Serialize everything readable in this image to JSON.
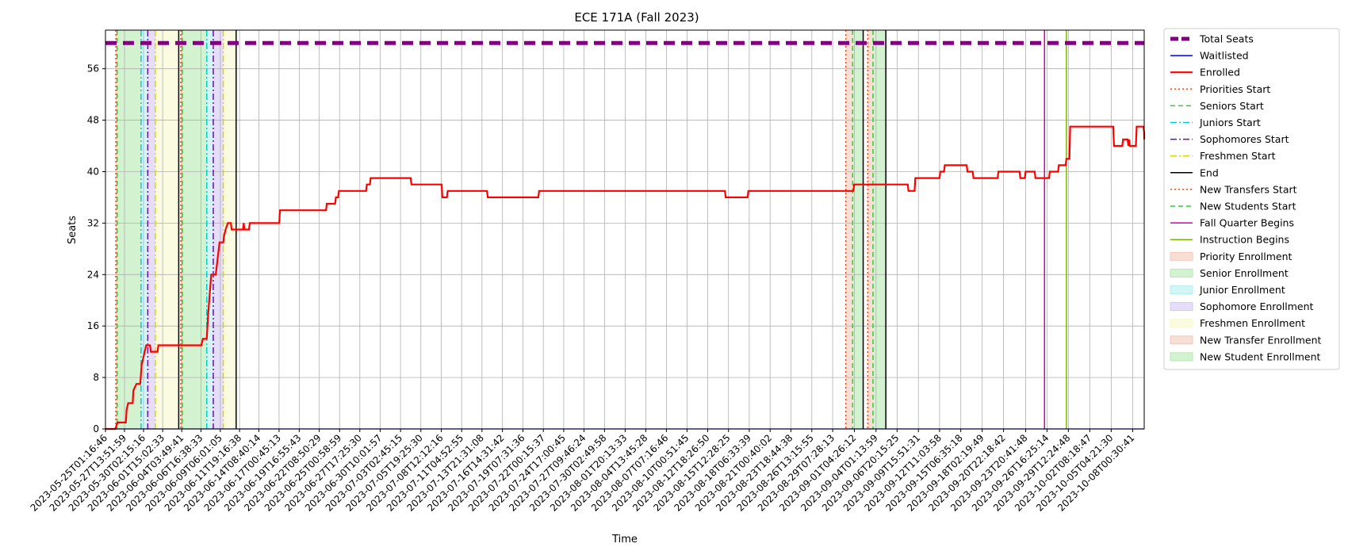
{
  "chart_data": {
    "type": "line",
    "title": "ECE 171A (Fall 2023)",
    "xlabel": "Time",
    "ylabel": "Seats",
    "ylim": [
      0,
      62
    ],
    "xlim_days": [
      0,
      137.5
    ],
    "grid": true,
    "legend_position": "outside-right",
    "yticks": [
      0,
      8,
      16,
      24,
      32,
      40,
      48,
      56
    ],
    "x_tick_labels": [
      "2023-05-25T01:16:46",
      "2023-05-27T13:51:59",
      "2023-05-30T02:15:16",
      "2023-06-01T15:02:33",
      "2023-06-04T03:49:41",
      "2023-06-06T16:38:33",
      "2023-06-09T06:01:05",
      "2023-06-11T19:16:38",
      "2023-06-14T08:40:14",
      "2023-06-17T00:45:13",
      "2023-06-19T16:55:43",
      "2023-06-22T08:50:29",
      "2023-06-25T00:58:59",
      "2023-06-27T17:25:30",
      "2023-06-30T10:01:57",
      "2023-07-03T02:45:15",
      "2023-07-05T19:25:30",
      "2023-07-08T12:12:16",
      "2023-07-11T04:52:55",
      "2023-07-13T21:31:08",
      "2023-07-16T14:31:42",
      "2023-07-19T07:31:36",
      "2023-07-22T00:15:37",
      "2023-07-24T17:00:45",
      "2023-07-27T09:46:24",
      "2023-07-30T02:49:58",
      "2023-08-01T20:13:33",
      "2023-08-04T13:45:28",
      "2023-08-07T07:16:46",
      "2023-08-10T00:51:45",
      "2023-08-12T18:26:50",
      "2023-08-15T12:28:25",
      "2023-08-18T06:33:39",
      "2023-08-21T00:40:02",
      "2023-08-23T18:44:38",
      "2023-08-26T13:15:55",
      "2023-08-29T07:28:13",
      "2023-09-01T04:26:12",
      "2023-09-04T01:13:59",
      "2023-09-06T20:15:25",
      "2023-09-09T15:51:31",
      "2023-09-12T11:03:58",
      "2023-09-15T06:35:18",
      "2023-09-18T02:19:49",
      "2023-09-20T22:18:42",
      "2023-09-23T20:41:48",
      "2023-09-26T16:25:14",
      "2023-09-29T12:24:48",
      "2023-10-02T08:18:47",
      "2023-10-05T04:21:30",
      "2023-10-08T00:30:41"
    ],
    "x_tick_days": [
      0,
      2.52,
      5.04,
      7.57,
      10.1,
      12.64,
      15.2,
      17.75,
      20.3,
      22.98,
      25.65,
      28.3,
      30.99,
      33.67,
      36.36,
      39.06,
      41.75,
      44.45,
      47.15,
      49.84,
      52.55,
      55.26,
      57.96,
      60.66,
      63.35,
      66.06,
      68.79,
      71.52,
      74.25,
      76.98,
      79.72,
      82.47,
      85.22,
      87.98,
      90.73,
      93.5,
      96.26,
      99.13,
      102.0,
      104.79,
      107.61,
      110.41,
      113.22,
      116.05,
      118.88,
      121.81,
      124.63,
      127.46,
      130.29,
      133.13,
      135.97
    ],
    "series": [
      {
        "name": "Total Seats",
        "color": "#800080",
        "style": "dashed-thick",
        "points": [
          [
            0,
            60
          ],
          [
            137.5,
            60
          ]
        ]
      },
      {
        "name": "Waitlisted",
        "color": "#0000ff",
        "style": "solid",
        "points": [
          [
            0,
            0
          ],
          [
            137.5,
            0
          ]
        ]
      },
      {
        "name": "Enrolled",
        "color": "#ff0000",
        "style": "step",
        "points": [
          [
            0,
            0
          ],
          [
            1.3,
            0
          ],
          [
            1.6,
            1
          ],
          [
            2.7,
            1
          ],
          [
            2.8,
            3
          ],
          [
            3.0,
            4
          ],
          [
            3.6,
            4
          ],
          [
            3.7,
            6
          ],
          [
            4.1,
            7
          ],
          [
            4.6,
            7
          ],
          [
            4.8,
            10
          ],
          [
            5.2,
            12
          ],
          [
            5.4,
            13
          ],
          [
            5.9,
            13
          ],
          [
            6.0,
            12
          ],
          [
            6.9,
            12
          ],
          [
            7.0,
            13
          ],
          [
            10.5,
            13
          ],
          [
            12.7,
            13
          ],
          [
            12.9,
            14
          ],
          [
            13.4,
            14
          ],
          [
            13.6,
            18
          ],
          [
            13.8,
            21
          ],
          [
            14.0,
            24
          ],
          [
            14.6,
            24
          ],
          [
            14.8,
            26
          ],
          [
            15.1,
            29
          ],
          [
            15.6,
            29
          ],
          [
            15.7,
            30
          ],
          [
            15.9,
            31
          ],
          [
            16.2,
            32
          ],
          [
            16.6,
            32
          ],
          [
            16.7,
            31
          ],
          [
            18.2,
            31
          ],
          [
            18.3,
            32
          ],
          [
            18.4,
            31
          ],
          [
            19.0,
            31
          ],
          [
            19.1,
            32
          ],
          [
            23.0,
            32
          ],
          [
            23.1,
            34
          ],
          [
            29.2,
            34
          ],
          [
            29.3,
            35
          ],
          [
            30.4,
            35
          ],
          [
            30.5,
            36
          ],
          [
            30.8,
            36
          ],
          [
            30.9,
            37
          ],
          [
            34.5,
            37
          ],
          [
            34.6,
            38
          ],
          [
            35.0,
            38
          ],
          [
            35.1,
            39
          ],
          [
            40.4,
            39
          ],
          [
            40.5,
            38
          ],
          [
            44.5,
            38
          ],
          [
            44.6,
            36
          ],
          [
            45.2,
            36
          ],
          [
            45.3,
            37
          ],
          [
            50.5,
            37
          ],
          [
            50.6,
            36
          ],
          [
            57.3,
            36
          ],
          [
            57.4,
            37
          ],
          [
            82.0,
            37
          ],
          [
            82.1,
            36
          ],
          [
            85.0,
            36
          ],
          [
            85.1,
            37
          ],
          [
            99.0,
            37
          ],
          [
            99.1,
            38
          ],
          [
            106.2,
            38
          ],
          [
            106.3,
            37
          ],
          [
            107.1,
            37
          ],
          [
            107.2,
            39
          ],
          [
            110.4,
            39
          ],
          [
            110.5,
            40
          ],
          [
            111.0,
            40
          ],
          [
            111.1,
            41
          ],
          [
            114.0,
            41
          ],
          [
            114.1,
            40
          ],
          [
            114.8,
            40
          ],
          [
            114.9,
            39
          ],
          [
            118.1,
            39
          ],
          [
            118.2,
            40
          ],
          [
            121.0,
            40
          ],
          [
            121.1,
            39
          ],
          [
            121.7,
            39
          ],
          [
            121.8,
            40
          ],
          [
            123.0,
            40
          ],
          [
            123.1,
            39
          ],
          [
            124.9,
            39
          ],
          [
            125.0,
            40
          ],
          [
            126.1,
            40
          ],
          [
            126.2,
            41
          ],
          [
            127.1,
            41
          ],
          [
            127.2,
            42
          ],
          [
            127.6,
            42
          ],
          [
            127.7,
            47
          ],
          [
            133.4,
            47
          ],
          [
            133.5,
            44
          ],
          [
            134.6,
            44
          ],
          [
            134.7,
            45
          ],
          [
            135.3,
            45
          ],
          [
            135.4,
            44
          ],
          [
            135.5,
            45
          ],
          [
            135.6,
            44
          ],
          [
            136.4,
            44
          ],
          [
            136.5,
            47
          ],
          [
            137.4,
            47
          ],
          [
            137.5,
            46
          ],
          [
            137.5,
            45
          ]
        ]
      }
    ],
    "vertical_lines": [
      {
        "name": "Priorities Start",
        "color": "#ff4500",
        "style": "dotted",
        "x": [
          1.37,
          9.97,
          98.0,
          100.9
        ]
      },
      {
        "name": "Seniors Start",
        "color": "#32cd32",
        "style": "dashed",
        "x": [
          1.55,
          10.17,
          98.9,
          101.6
        ]
      },
      {
        "name": "Juniors Start",
        "color": "#00ced1",
        "style": "dashdot",
        "x": [
          4.71,
          13.41
        ]
      },
      {
        "name": "Sophomores Start",
        "color": "#6a0dad",
        "style": "dashdot",
        "x": [
          5.6,
          14.27
        ]
      },
      {
        "name": "Freshmen Start",
        "color": "#d7d700",
        "style": "dashdot",
        "x": [
          6.6,
          15.6
        ]
      },
      {
        "name": "End",
        "color": "#000000",
        "style": "solid",
        "x": [
          9.7,
          17.3,
          100.3,
          103.3
        ]
      },
      {
        "name": "New Transfers Start",
        "color": "#ff4500",
        "style": "dotted",
        "x": []
      },
      {
        "name": "New Students Start",
        "color": "#32cd32",
        "style": "dashed",
        "x": []
      },
      {
        "name": "Fall Quarter Begins",
        "color": "#d400aa",
        "style": "solid",
        "x": [
          124.3
        ]
      },
      {
        "name": "Instruction Begins",
        "color": "#7bb800",
        "style": "solid",
        "x": [
          127.2
        ]
      }
    ],
    "shaded_regions": [
      {
        "name": "Priority Enrollment",
        "color": "#f4c8b8",
        "spans": [
          [
            1.37,
            1.55
          ],
          [
            9.97,
            10.17
          ],
          [
            98.0,
            98.9
          ]
        ]
      },
      {
        "name": "Senior Enrollment",
        "color": "#b6eab0",
        "spans": [
          [
            1.55,
            4.71
          ],
          [
            10.17,
            13.41
          ],
          [
            98.9,
            100.3
          ]
        ]
      },
      {
        "name": "Junior Enrollment",
        "color": "#b8eef0",
        "spans": [
          [
            4.71,
            5.6
          ],
          [
            13.41,
            14.27
          ]
        ]
      },
      {
        "name": "Sophomore Enrollment",
        "color": "#d5c6f4",
        "spans": [
          [
            5.6,
            6.6
          ],
          [
            14.27,
            15.6
          ]
        ]
      },
      {
        "name": "Freshmen Enrollment",
        "color": "#f9f9cd",
        "spans": [
          [
            6.6,
            9.7
          ],
          [
            15.6,
            17.3
          ]
        ]
      },
      {
        "name": "New Transfer Enrollment",
        "color": "#f4c8b8",
        "spans": [
          [
            100.9,
            101.6
          ]
        ]
      },
      {
        "name": "New Student Enrollment",
        "color": "#b6eab0",
        "spans": [
          [
            101.6,
            103.3
          ]
        ]
      }
    ]
  }
}
